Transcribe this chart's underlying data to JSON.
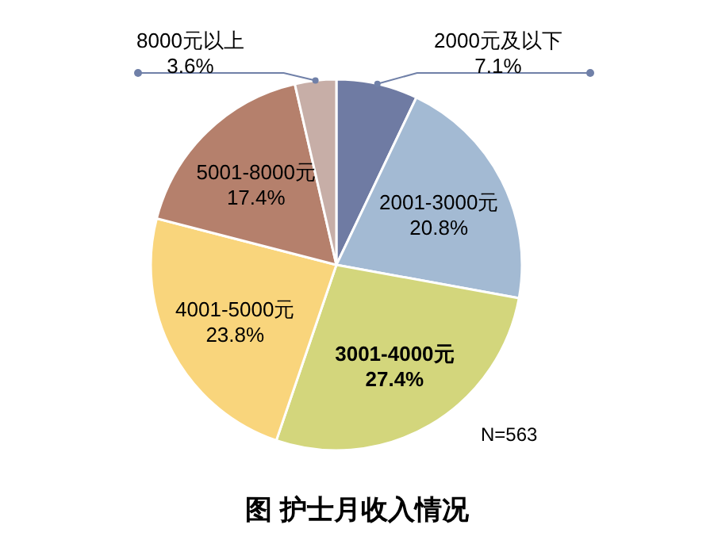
{
  "chart_data": {
    "type": "pie",
    "title": "图 护士月收入情况",
    "categories": [
      "2000元及以下",
      "2001-3000元",
      "3001-4000元",
      "4001-5000元",
      "5001-8000元",
      "8000元以上"
    ],
    "values": [
      7.1,
      20.8,
      27.4,
      23.8,
      17.4,
      3.6
    ],
    "colors": [
      "#6f7ba3",
      "#a3bad3",
      "#d3d67c",
      "#f9d57c",
      "#b5806c",
      "#c7aea7"
    ],
    "value_labels": [
      "7.1%",
      "20.8%",
      "27.4%",
      "23.8%",
      "17.4%",
      "3.6%"
    ],
    "annotations": [
      "N=563"
    ]
  }
}
